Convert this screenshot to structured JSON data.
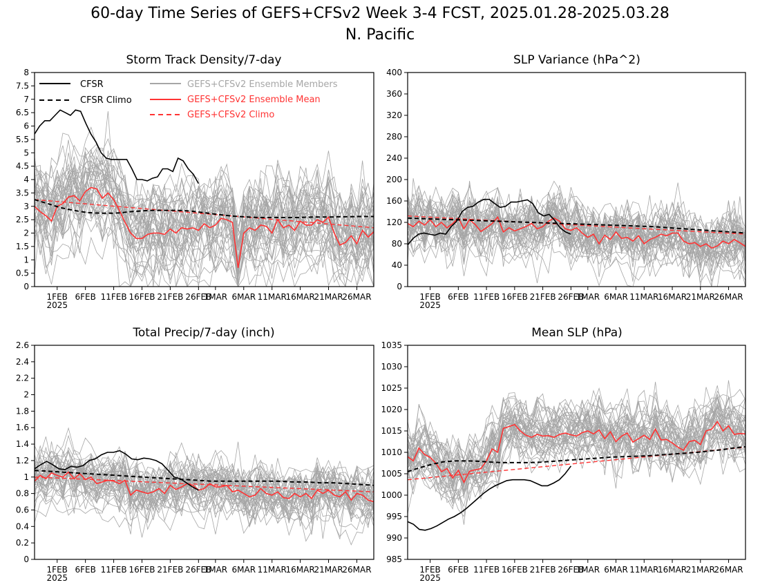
{
  "figure": {
    "title_line1": "60-day Time Series of GEFS+CFSv2 Week 3-4 FCST, 2025.01.28-2025.03.28",
    "title_line2": "N. Pacific"
  },
  "colors": {
    "cfsr": "#000000",
    "members": "#a6a6a6",
    "mean": "#ff3333",
    "axes": "#000000"
  },
  "legend": {
    "cfsr": "CFSR",
    "cfsr_climo": "CFSR Climo",
    "members": "GEFS+CFSv2 Ensemble Members",
    "mean": "GEFS+CFSv2 Ensemble Mean",
    "model_climo": "GEFS+CFSv2 Climo"
  },
  "x_tick_labels": [
    "1FEB",
    "6FEB",
    "11FEB",
    "16FEB",
    "21FEB",
    "26FEB",
    "1MAR",
    "6MAR",
    "11MAR",
    "16MAR",
    "21MAR",
    "26MAR"
  ],
  "x_year_label": "2025",
  "chart_data": [
    {
      "type": "line",
      "title": "Storm Track Density/7-day",
      "x_start": "2025-01-28",
      "x_end": "2025-03-28",
      "ylim": [
        0,
        8
      ],
      "yticks": [
        "0",
        "0.5",
        "1",
        "1.5",
        "2",
        "2.5",
        "3",
        "3.5",
        "4",
        "4.5",
        "5",
        "5.5",
        "6",
        "6.5",
        "7",
        "7.5",
        "8"
      ],
      "legend": "top-left",
      "series": [
        {
          "name": "CFSR",
          "style": "solid-black",
          "values": [
            5.7,
            6.0,
            6.2,
            6.2,
            6.4,
            6.6,
            6.5,
            6.4,
            6.6,
            6.55,
            6.1,
            5.7,
            5.4,
            5.0,
            4.8,
            4.75,
            4.75,
            4.75,
            4.75,
            4.4,
            4.0,
            4.0,
            3.95,
            4.05,
            4.1,
            4.4,
            4.4,
            4.3,
            4.8,
            4.7,
            4.4,
            4.2,
            3.85
          ]
        },
        {
          "name": "CFSR Climo",
          "style": "dashed-black",
          "values": [
            3.25,
            3.15,
            3.05,
            2.95,
            2.88,
            2.82,
            2.77,
            2.75,
            2.74,
            2.74,
            2.76,
            2.8,
            2.82,
            2.84,
            2.85,
            2.85,
            2.85,
            2.84,
            2.82,
            2.78,
            2.74,
            2.7,
            2.66,
            2.63,
            2.61,
            2.59,
            2.58,
            2.58,
            2.58,
            2.58,
            2.58,
            2.59,
            2.6,
            2.6,
            2.6,
            2.61,
            2.61,
            2.62,
            2.62,
            2.62
          ]
        },
        {
          "name": "GEFS+CFSv2 Ensemble Mean",
          "style": "solid-red",
          "values": [
            3.0,
            2.8,
            2.65,
            2.45,
            3.0,
            3.1,
            3.35,
            3.4,
            3.2,
            3.55,
            3.7,
            3.65,
            3.3,
            3.5,
            3.25,
            2.85,
            2.4,
            2.0,
            1.8,
            1.8,
            1.95,
            2.0,
            2.0,
            1.95,
            2.15,
            2.0,
            2.2,
            2.15,
            2.2,
            2.1,
            2.35,
            2.2,
            2.3,
            2.55,
            2.5,
            2.4,
            0.7,
            2.0,
            2.2,
            2.1,
            2.3,
            2.25,
            2.0,
            2.5,
            2.2,
            2.3,
            2.1,
            2.45,
            2.3,
            2.3,
            2.5,
            2.4,
            2.6,
            2.0,
            1.55,
            1.65,
            1.9,
            1.6,
            2.1,
            1.85,
            2.05
          ]
        },
        {
          "name": "GEFS+CFSv2 Climo",
          "style": "dashed-red",
          "values": [
            3.25,
            2.2
          ]
        }
      ]
    },
    {
      "type": "line",
      "title": "SLP Variance (hPa^2)",
      "x_start": "2025-01-28",
      "x_end": "2025-03-28",
      "ylim": [
        0,
        400
      ],
      "yticks": [
        "0",
        "40",
        "80",
        "120",
        "160",
        "200",
        "240",
        "280",
        "320",
        "360",
        "400"
      ],
      "series": [
        {
          "name": "CFSR",
          "style": "solid-black",
          "values": [
            78,
            90,
            98,
            100,
            98,
            96,
            100,
            98,
            112,
            122,
            140,
            148,
            150,
            158,
            163,
            163,
            155,
            148,
            150,
            158,
            158,
            160,
            162,
            155,
            138,
            132,
            135,
            124,
            110,
            102,
            98
          ]
        },
        {
          "name": "CFSR Climo",
          "style": "dashed-black",
          "values": [
            128,
            127,
            126,
            125,
            124,
            123,
            122,
            121,
            120,
            119,
            118,
            117,
            116,
            115,
            114,
            113,
            112,
            110,
            108,
            106,
            104,
            102,
            100
          ]
        },
        {
          "name": "GEFS+CFSv2 Ensemble Mean",
          "style": "solid-red",
          "values": [
            118,
            112,
            122,
            115,
            125,
            112,
            120,
            110,
            118,
            128,
            108,
            125,
            116,
            103,
            110,
            118,
            130,
            102,
            110,
            104,
            108,
            112,
            118,
            108,
            112,
            122,
            128,
            122,
            108,
            105,
            110,
            100,
            92,
            98,
            80,
            96,
            88,
            102,
            90,
            92,
            85,
            95,
            80,
            88,
            92,
            98,
            95,
            100,
            100,
            85,
            80,
            82,
            75,
            80,
            72,
            76,
            85,
            80,
            88,
            82,
            75
          ]
        },
        {
          "name": "GEFS+CFSv2 Climo",
          "style": "dashed-red",
          "values": [
            132,
            98
          ]
        }
      ]
    },
    {
      "type": "line",
      "title": "Total Precip/7-day (inch)",
      "x_start": "2025-01-28",
      "x_end": "2025-03-28",
      "ylim": [
        0,
        2.6
      ],
      "yticks": [
        "0",
        "0.2",
        "0.4",
        "0.6",
        "0.8",
        "1",
        "1.2",
        "1.4",
        "1.6",
        "1.8",
        "2",
        "2.2",
        "2.4",
        "2.6"
      ],
      "series": [
        {
          "name": "CFSR",
          "style": "solid-black",
          "values": [
            1.1,
            1.15,
            1.19,
            1.15,
            1.1,
            1.09,
            1.13,
            1.12,
            1.14,
            1.2,
            1.22,
            1.27,
            1.3,
            1.3,
            1.32,
            1.28,
            1.22,
            1.21,
            1.23,
            1.22,
            1.2,
            1.16,
            1.08,
            1.0,
            0.98,
            0.93,
            0.88,
            0.84
          ]
        },
        {
          "name": "CFSR Climo",
          "style": "dashed-black",
          "values": [
            1.08,
            1.07,
            1.06,
            1.05,
            1.04,
            1.03,
            1.02,
            1.01,
            1.0,
            0.99,
            0.98,
            0.97,
            0.96,
            0.95,
            0.95,
            0.95,
            0.95,
            0.95,
            0.95,
            0.94,
            0.94,
            0.93,
            0.93,
            0.92,
            0.91,
            0.9
          ]
        },
        {
          "name": "GEFS+CFSv2 Ensemble Mean",
          "style": "solid-red",
          "values": [
            0.95,
            1.02,
            0.98,
            1.05,
            1.02,
            1.0,
            1.06,
            0.98,
            1.04,
            0.97,
            1.0,
            0.92,
            0.94,
            0.96,
            0.95,
            0.92,
            0.96,
            0.78,
            0.84,
            0.82,
            0.8,
            0.82,
            0.86,
            0.8,
            0.9,
            0.85,
            0.88,
            0.92,
            0.9,
            0.84,
            0.86,
            0.92,
            0.88,
            0.88,
            0.9,
            0.82,
            0.84,
            0.8,
            0.76,
            0.78,
            0.86,
            0.8,
            0.78,
            0.82,
            0.75,
            0.74,
            0.8,
            0.76,
            0.8,
            0.74,
            0.84,
            0.8,
            0.84,
            0.78,
            0.76,
            0.82,
            0.72,
            0.8,
            0.78,
            0.72,
            0.7
          ]
        },
        {
          "name": "GEFS+CFSv2 Climo",
          "style": "dashed-red",
          "values": [
            1.0,
            0.82
          ]
        }
      ]
    },
    {
      "type": "line",
      "title": "Mean SLP (hPa)",
      "x_start": "2025-01-28",
      "x_end": "2025-03-28",
      "ylim": [
        985,
        1035
      ],
      "yticks": [
        "985",
        "990",
        "995",
        "1000",
        "1005",
        "1010",
        "1015",
        "1020",
        "1025",
        "1030",
        "1035"
      ],
      "series": [
        {
          "name": "CFSR",
          "style": "solid-black",
          "values": [
            993.8,
            993.2,
            992.0,
            991.8,
            992.2,
            992.8,
            993.6,
            994.4,
            995.0,
            995.8,
            996.8,
            998.0,
            999.2,
            1000.4,
            1001.4,
            1002.2,
            1002.8,
            1003.4,
            1003.6,
            1003.6,
            1003.6,
            1003.4,
            1002.8,
            1002.2,
            1002.2,
            1002.8,
            1003.6,
            1005.0,
            1006.8
          ]
        },
        {
          "name": "CFSR Climo",
          "style": "dashed-black",
          "values": [
            1005.5,
            1006.4,
            1007.2,
            1007.8,
            1008.0,
            1008.0,
            1007.9,
            1007.7,
            1007.6,
            1007.6,
            1007.6,
            1007.7,
            1007.9,
            1008.1,
            1008.3,
            1008.5,
            1008.7,
            1008.9,
            1009.0,
            1009.1,
            1009.2,
            1009.4,
            1009.6,
            1009.8,
            1010.0,
            1010.3,
            1010.6,
            1011.0,
            1011.3
          ]
        },
        {
          "name": "GEFS+CFSv2 Ensemble Mean",
          "style": "solid-red",
          "values": [
            1009.0,
            1008.0,
            1011.0,
            1009.5,
            1008.8,
            1007.5,
            1005.5,
            1006.2,
            1004.0,
            1005.8,
            1003.0,
            1005.6,
            1005.9,
            1006.2,
            1008.0,
            1010.8,
            1010.0,
            1015.6,
            1016.0,
            1016.5,
            1015.0,
            1014.0,
            1013.5,
            1014.2,
            1013.8,
            1013.9,
            1013.5,
            1014.2,
            1014.5,
            1014.1,
            1013.8,
            1014.6,
            1015.0,
            1014.3,
            1015.2,
            1013.2,
            1014.8,
            1012.5,
            1013.8,
            1014.5,
            1012.4,
            1013.2,
            1014.0,
            1013.0,
            1015.4,
            1012.9,
            1013.0,
            1012.2,
            1011.2,
            1010.5,
            1012.5,
            1012.8,
            1011.8,
            1015.0,
            1015.4,
            1017.2,
            1015.0,
            1016.2,
            1014.2,
            1014.4,
            1014.3
          ]
        },
        {
          "name": "GEFS+CFSv2 Climo",
          "style": "dashed-red",
          "values": [
            1003.6,
            1011.2
          ]
        }
      ]
    }
  ]
}
